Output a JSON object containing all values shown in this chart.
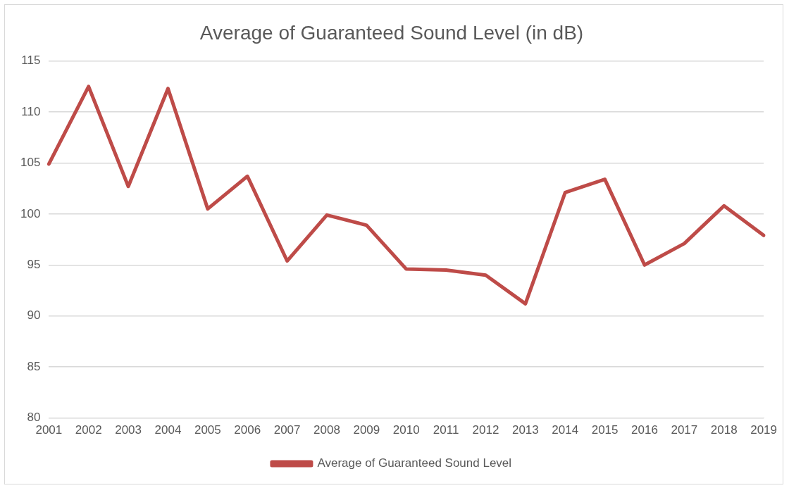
{
  "chart_data": {
    "type": "line",
    "title": "Average of Guaranteed Sound Level (in dB)",
    "categories": [
      "2001",
      "2002",
      "2003",
      "2004",
      "2005",
      "2006",
      "2007",
      "2008",
      "2009",
      "2010",
      "2011",
      "2012",
      "2013",
      "2014",
      "2015",
      "2016",
      "2017",
      "2018",
      "2019"
    ],
    "series": [
      {
        "name": "Average of Guaranteed Sound Level",
        "color": "#be4b48",
        "values": [
          104.9,
          112.5,
          102.7,
          112.3,
          100.5,
          103.7,
          95.4,
          99.9,
          98.9,
          94.6,
          94.5,
          94.0,
          91.2,
          102.1,
          103.4,
          95.0,
          97.1,
          100.8,
          97.9
        ]
      }
    ],
    "ylim": [
      80,
      115
    ],
    "yticks": [
      80,
      85,
      90,
      95,
      100,
      105,
      110,
      115
    ],
    "grid": "y",
    "legend": "bottom",
    "marker": "none",
    "line_style": "solid"
  }
}
